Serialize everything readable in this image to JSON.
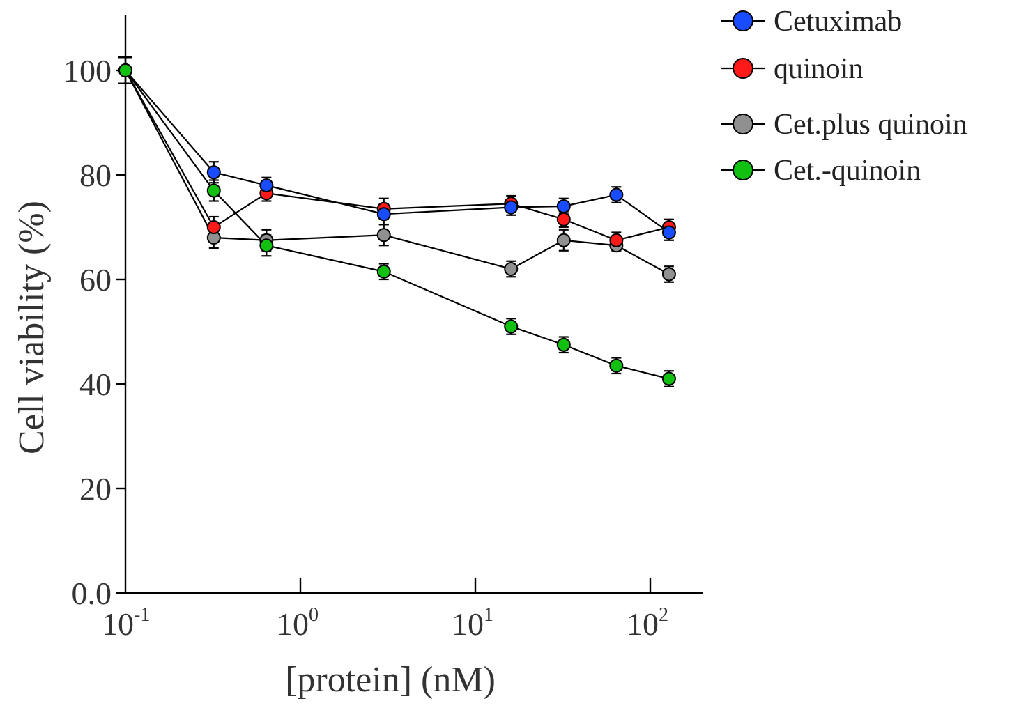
{
  "chart_data": {
    "type": "line",
    "xlabel": "[protein] (nM)",
    "ylabel": "Cell viability (%)",
    "x_scale": "log",
    "xlim": [
      0.1,
      200
    ],
    "ylim": [
      0,
      110
    ],
    "x_ticks": [
      {
        "base": "10",
        "exp": "-1",
        "value": 0.1
      },
      {
        "base": "10",
        "exp": "0",
        "value": 1
      },
      {
        "base": "10",
        "exp": "1",
        "value": 10
      },
      {
        "base": "10",
        "exp": "2",
        "value": 100
      }
    ],
    "y_ticks": [
      {
        "label": "0.0",
        "value": 0
      },
      {
        "label": "20",
        "value": 20
      },
      {
        "label": "40",
        "value": 40
      },
      {
        "label": "60",
        "value": 60
      },
      {
        "label": "80",
        "value": 80
      },
      {
        "label": "100",
        "value": 100
      }
    ],
    "grid": false,
    "legend_position": "top-right",
    "x": [
      0.1,
      0.32,
      0.64,
      3.0,
      16,
      32,
      64,
      128
    ],
    "series": [
      {
        "name": "Cet.plus quinoin",
        "color": "#909090",
        "values": [
          100,
          68,
          67.5,
          68.5,
          62,
          67.5,
          66.5,
          61
        ],
        "errors": [
          2.5,
          2,
          2,
          2,
          1.5,
          2,
          1,
          1.5
        ]
      },
      {
        "name": "quinoin",
        "color": "#ff1a1a",
        "values": [
          100,
          70,
          76.5,
          73.5,
          74.5,
          71.5,
          67.5,
          70
        ],
        "errors": [
          2.5,
          2,
          1.5,
          2,
          1.5,
          1.5,
          1.5,
          1.5
        ]
      },
      {
        "name": "Cetuximab",
        "color": "#1a4cff",
        "values": [
          100,
          80.5,
          78,
          72.5,
          73.8,
          74,
          76.2,
          69
        ],
        "errors": [
          2.5,
          2,
          1.5,
          2,
          1.5,
          1.5,
          1.5,
          1.5
        ]
      },
      {
        "name": "Cet.-quinoin",
        "color": "#12c012",
        "values": [
          100,
          77,
          66.5,
          61.5,
          51,
          47.5,
          43.5,
          41
        ],
        "errors": [
          2.5,
          2,
          2,
          1.5,
          1.5,
          1.5,
          1.5,
          1.5
        ]
      }
    ],
    "legend_order": [
      "Cetuximab",
      "quinoin",
      "Cet.plus quinoin",
      "Cet.-quinoin"
    ]
  }
}
